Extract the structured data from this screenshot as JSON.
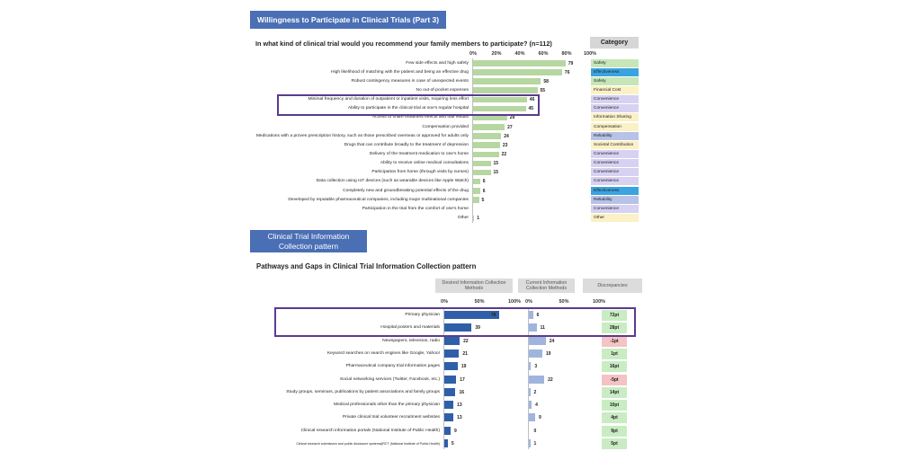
{
  "section1": {
    "banner": "Willingness to Participate in Clinical Trials (Part 3)",
    "category_header": "Category"
  },
  "section2": {
    "banner": "Clinical Trial Information Collection pattern",
    "col_desired": "Desired Information Collection Methods",
    "col_current": "Current Information Collection Methods",
    "col_discrepancies": "Discrepancies"
  },
  "colors": {
    "banner": "#4a6fb5",
    "bar_green": "#b7d7a2",
    "bar_desired": "#2f5fa8",
    "bar_current": "#9fb5de",
    "highlight": "#5b3a8e",
    "positive": "#c9ecc3",
    "negative": "#f4c3c3",
    "category_colors": {
      "Safety": "#c6e6b8",
      "Effectiveness": "#3ba3e0",
      "Financial Cost": "#fbf1c6",
      "Convenience": "#d7d1f2",
      "Information Sharing": "#fbf1c6",
      "Compensation": "#fbf1c6",
      "Reliability": "#b8c2e6",
      "Societal Contribution": "#fbf1c6",
      "Other": "#fbf1c6"
    }
  },
  "chart_data": [
    {
      "type": "bar",
      "orientation": "horizontal",
      "title": "In what kind of clinical trial would you recommend your family members to participate? (n=112)",
      "xlim": [
        0,
        100
      ],
      "x_ticks": [
        "0%",
        "20%",
        "40%",
        "60%",
        "80%",
        "100%"
      ],
      "categories": [
        "Few side effects and high safety",
        "High likelihood of matching with the patient and being an effective drug",
        "Robust contingency measures in case of unexpected events",
        "No out-of-pocket expenses",
        "Minimal frequency and duration of outpatient or inpatient visits, requiring less effort",
        "Ability to participate in the clinical trial at one's regular hospital",
        "Access to share treatment effects and trial results",
        "Compensation provided",
        "Medications with a proven prescription history, such as those prescribed overseas or approved for adults only",
        "Drugs that can contribute broadly to the treatment of depression",
        "Delivery of the treatment medication to one's home",
        "Ability to receive online medical consultations",
        "Participation from home (through visits by nurses)",
        "Data collection using IoT devices (such as wearable devices like Apple Watch)",
        "Completely new and groundbreaking potential effects of the drug",
        "Developed by reputable pharmaceutical companies, including major multinational companies",
        "Participation in the trial from the comfort of one's home",
        "Other"
      ],
      "values": [
        79,
        76,
        58,
        55,
        46,
        45,
        29,
        27,
        24,
        23,
        22,
        15,
        15,
        6,
        6,
        5,
        null,
        1
      ],
      "category_tags": [
        "Safety",
        "Effectiveness",
        "Safety",
        "Financial Cost",
        "Convenience",
        "Convenience",
        "Information Sharing",
        "Compensation",
        "Reliability",
        "Societal Contribution",
        "Convenience",
        "Convenience",
        "Convenience",
        "Convenience",
        "Effectiveness",
        "Reliability",
        "Convenience",
        "Other"
      ],
      "highlighted_rows": [
        4,
        5
      ]
    },
    {
      "type": "bar",
      "orientation": "horizontal",
      "title": "Pathways and Gaps in Clinical Trial Information Collection pattern",
      "xlim": [
        0,
        100
      ],
      "x_ticks_desired": [
        "0%",
        "50%",
        "100%"
      ],
      "x_ticks_current": [
        "0%",
        "50%",
        "100%"
      ],
      "categories": [
        "Primary physician",
        "Hospital posters and materials",
        "Newspapers, television, radio",
        "Keyword searches on search engines like Google, Yahoo!",
        "Pharmaceutical company trial information pages",
        "Social networking services (Twitter, Facebook, etc.)",
        "Study groups, seminars, publications by patient associations and family groups",
        "Medical professionals other than the primary physician",
        "Private clinical trial volunteer recruitment websites",
        "Clinical research information portals (National Institute of Public Health)",
        "Clinical research submission and public disclosure systems/jRCT (National Institute of Public Health)"
      ],
      "series": [
        {
          "name": "Desired Information Collection Methods",
          "values": [
            78,
            39,
            22,
            21,
            19,
            17,
            16,
            13,
            13,
            9,
            5
          ]
        },
        {
          "name": "Current Information Collection Methods",
          "values": [
            6,
            11,
            24,
            19,
            3,
            22,
            2,
            4,
            9,
            0,
            1
          ]
        }
      ],
      "discrepancies": [
        "72pt",
        "28pt",
        "-1pt",
        "1pt",
        "16pt",
        "-5pt",
        "14pt",
        "10pt",
        "4pt",
        "9pt",
        "5pt"
      ],
      "highlighted_rows": [
        0,
        1
      ]
    }
  ]
}
